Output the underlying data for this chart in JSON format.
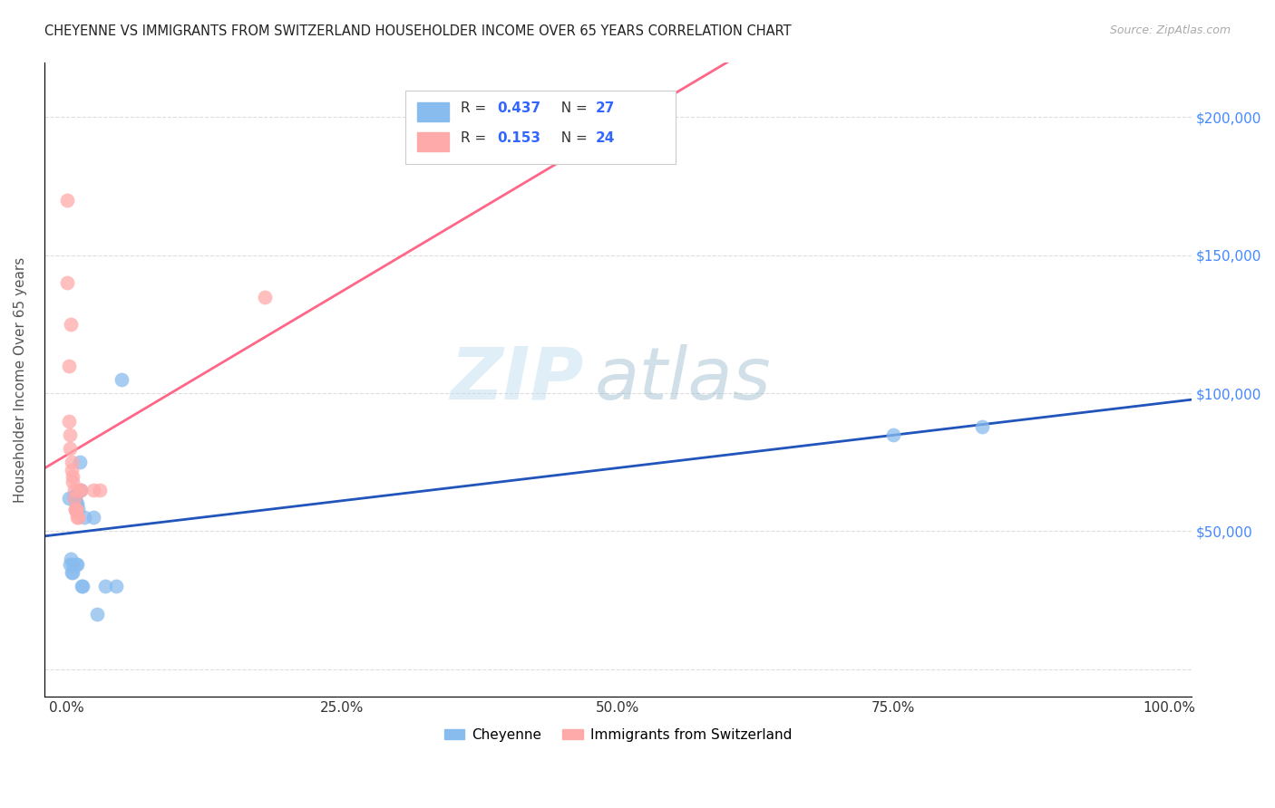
{
  "title": "CHEYENNE VS IMMIGRANTS FROM SWITZERLAND HOUSEHOLDER INCOME OVER 65 YEARS CORRELATION CHART",
  "source": "Source: ZipAtlas.com",
  "ylabel": "Householder Income Over 65 years",
  "watermark_zip": "ZIP",
  "watermark_atlas": "atlas",
  "legend_r1_val": "0.437",
  "legend_n1_val": "27",
  "legend_r2_val": "0.153",
  "legend_n2_val": "24",
  "cheyenne_color": "#88BBEE",
  "swiss_color": "#FFAAAA",
  "cheyenne_line_color": "#2255BB",
  "swiss_line_color": "#FF6688",
  "cheyenne_scatter_x": [
    0.002,
    0.003,
    0.004,
    0.005,
    0.006,
    0.006,
    0.007,
    0.007,
    0.008,
    0.008,
    0.009,
    0.009,
    0.01,
    0.01,
    0.011,
    0.012,
    0.013,
    0.014,
    0.015,
    0.016,
    0.025,
    0.028,
    0.035,
    0.045,
    0.05,
    0.75,
    0.83
  ],
  "cheyenne_scatter_y": [
    62000,
    38000,
    40000,
    35000,
    38000,
    35000,
    63000,
    62000,
    62000,
    63000,
    60000,
    38000,
    60000,
    38000,
    58000,
    75000,
    65000,
    30000,
    30000,
    55000,
    55000,
    20000,
    30000,
    30000,
    105000,
    85000,
    88000
  ],
  "swiss_scatter_x": [
    0.001,
    0.001,
    0.002,
    0.002,
    0.003,
    0.003,
    0.004,
    0.005,
    0.005,
    0.006,
    0.006,
    0.007,
    0.007,
    0.008,
    0.008,
    0.009,
    0.009,
    0.01,
    0.011,
    0.012,
    0.013,
    0.025,
    0.03,
    0.18
  ],
  "swiss_scatter_y": [
    170000,
    140000,
    110000,
    90000,
    85000,
    80000,
    125000,
    75000,
    72000,
    70000,
    68000,
    65000,
    62000,
    58000,
    58000,
    58000,
    57000,
    55000,
    55000,
    65000,
    65000,
    65000,
    65000,
    135000
  ],
  "xlim": [
    -0.02,
    1.02
  ],
  "ylim": [
    -10000,
    220000
  ],
  "yticks": [
    0,
    50000,
    100000,
    150000,
    200000
  ],
  "xticks": [
    0,
    0.25,
    0.5,
    0.75,
    1.0
  ],
  "xtick_labels": [
    "0.0%",
    "25.0%",
    "50.0%",
    "75.0%",
    "100.0%"
  ],
  "right_ytick_labels": [
    "$50,000",
    "$100,000",
    "$150,000",
    "$200,000"
  ],
  "right_ytick_values": [
    50000,
    100000,
    150000,
    200000
  ],
  "bg_color": "#FFFFFF",
  "grid_color": "#DDDDDD"
}
